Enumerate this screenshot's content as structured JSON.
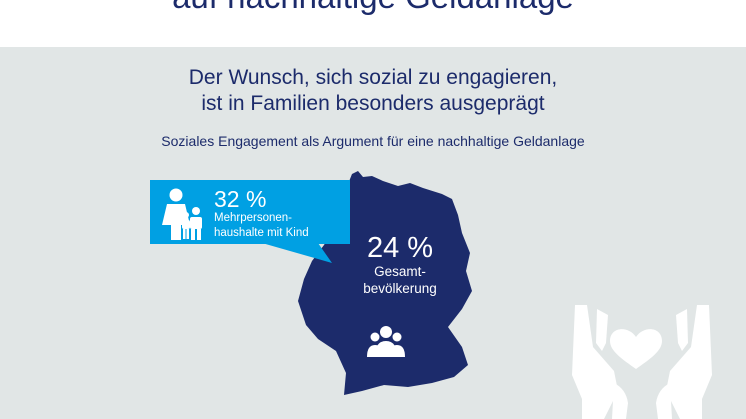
{
  "header": {
    "title": "auf nachhaltige Geldanlage"
  },
  "main": {
    "headline_line1": "Der Wunsch, sich sozial zu engagieren,",
    "headline_line2": "ist in Familien besonders ausgeprägt",
    "subline": "Soziales Engagement als Argument für eine nachhaltige Geldanlage"
  },
  "stats": {
    "families": {
      "value": "32 %",
      "label_line1": "Mehrpersonen-",
      "label_line2": "haushalte mit Kind",
      "icon": "family-icon"
    },
    "total": {
      "value": "24 %",
      "label_line1": "Gesamt-",
      "label_line2": "bevölkerung",
      "icon": "people-group-icon"
    }
  },
  "colors": {
    "map": "#1c2b6b",
    "callout": "#00a0e3",
    "panel_background": "#e1e6e6",
    "text": "#1c2b6b",
    "decoration": "#ffffff"
  },
  "decorations": {
    "hands_icon": "hands-holding-heart-icon",
    "map_icon": "germany-map"
  }
}
